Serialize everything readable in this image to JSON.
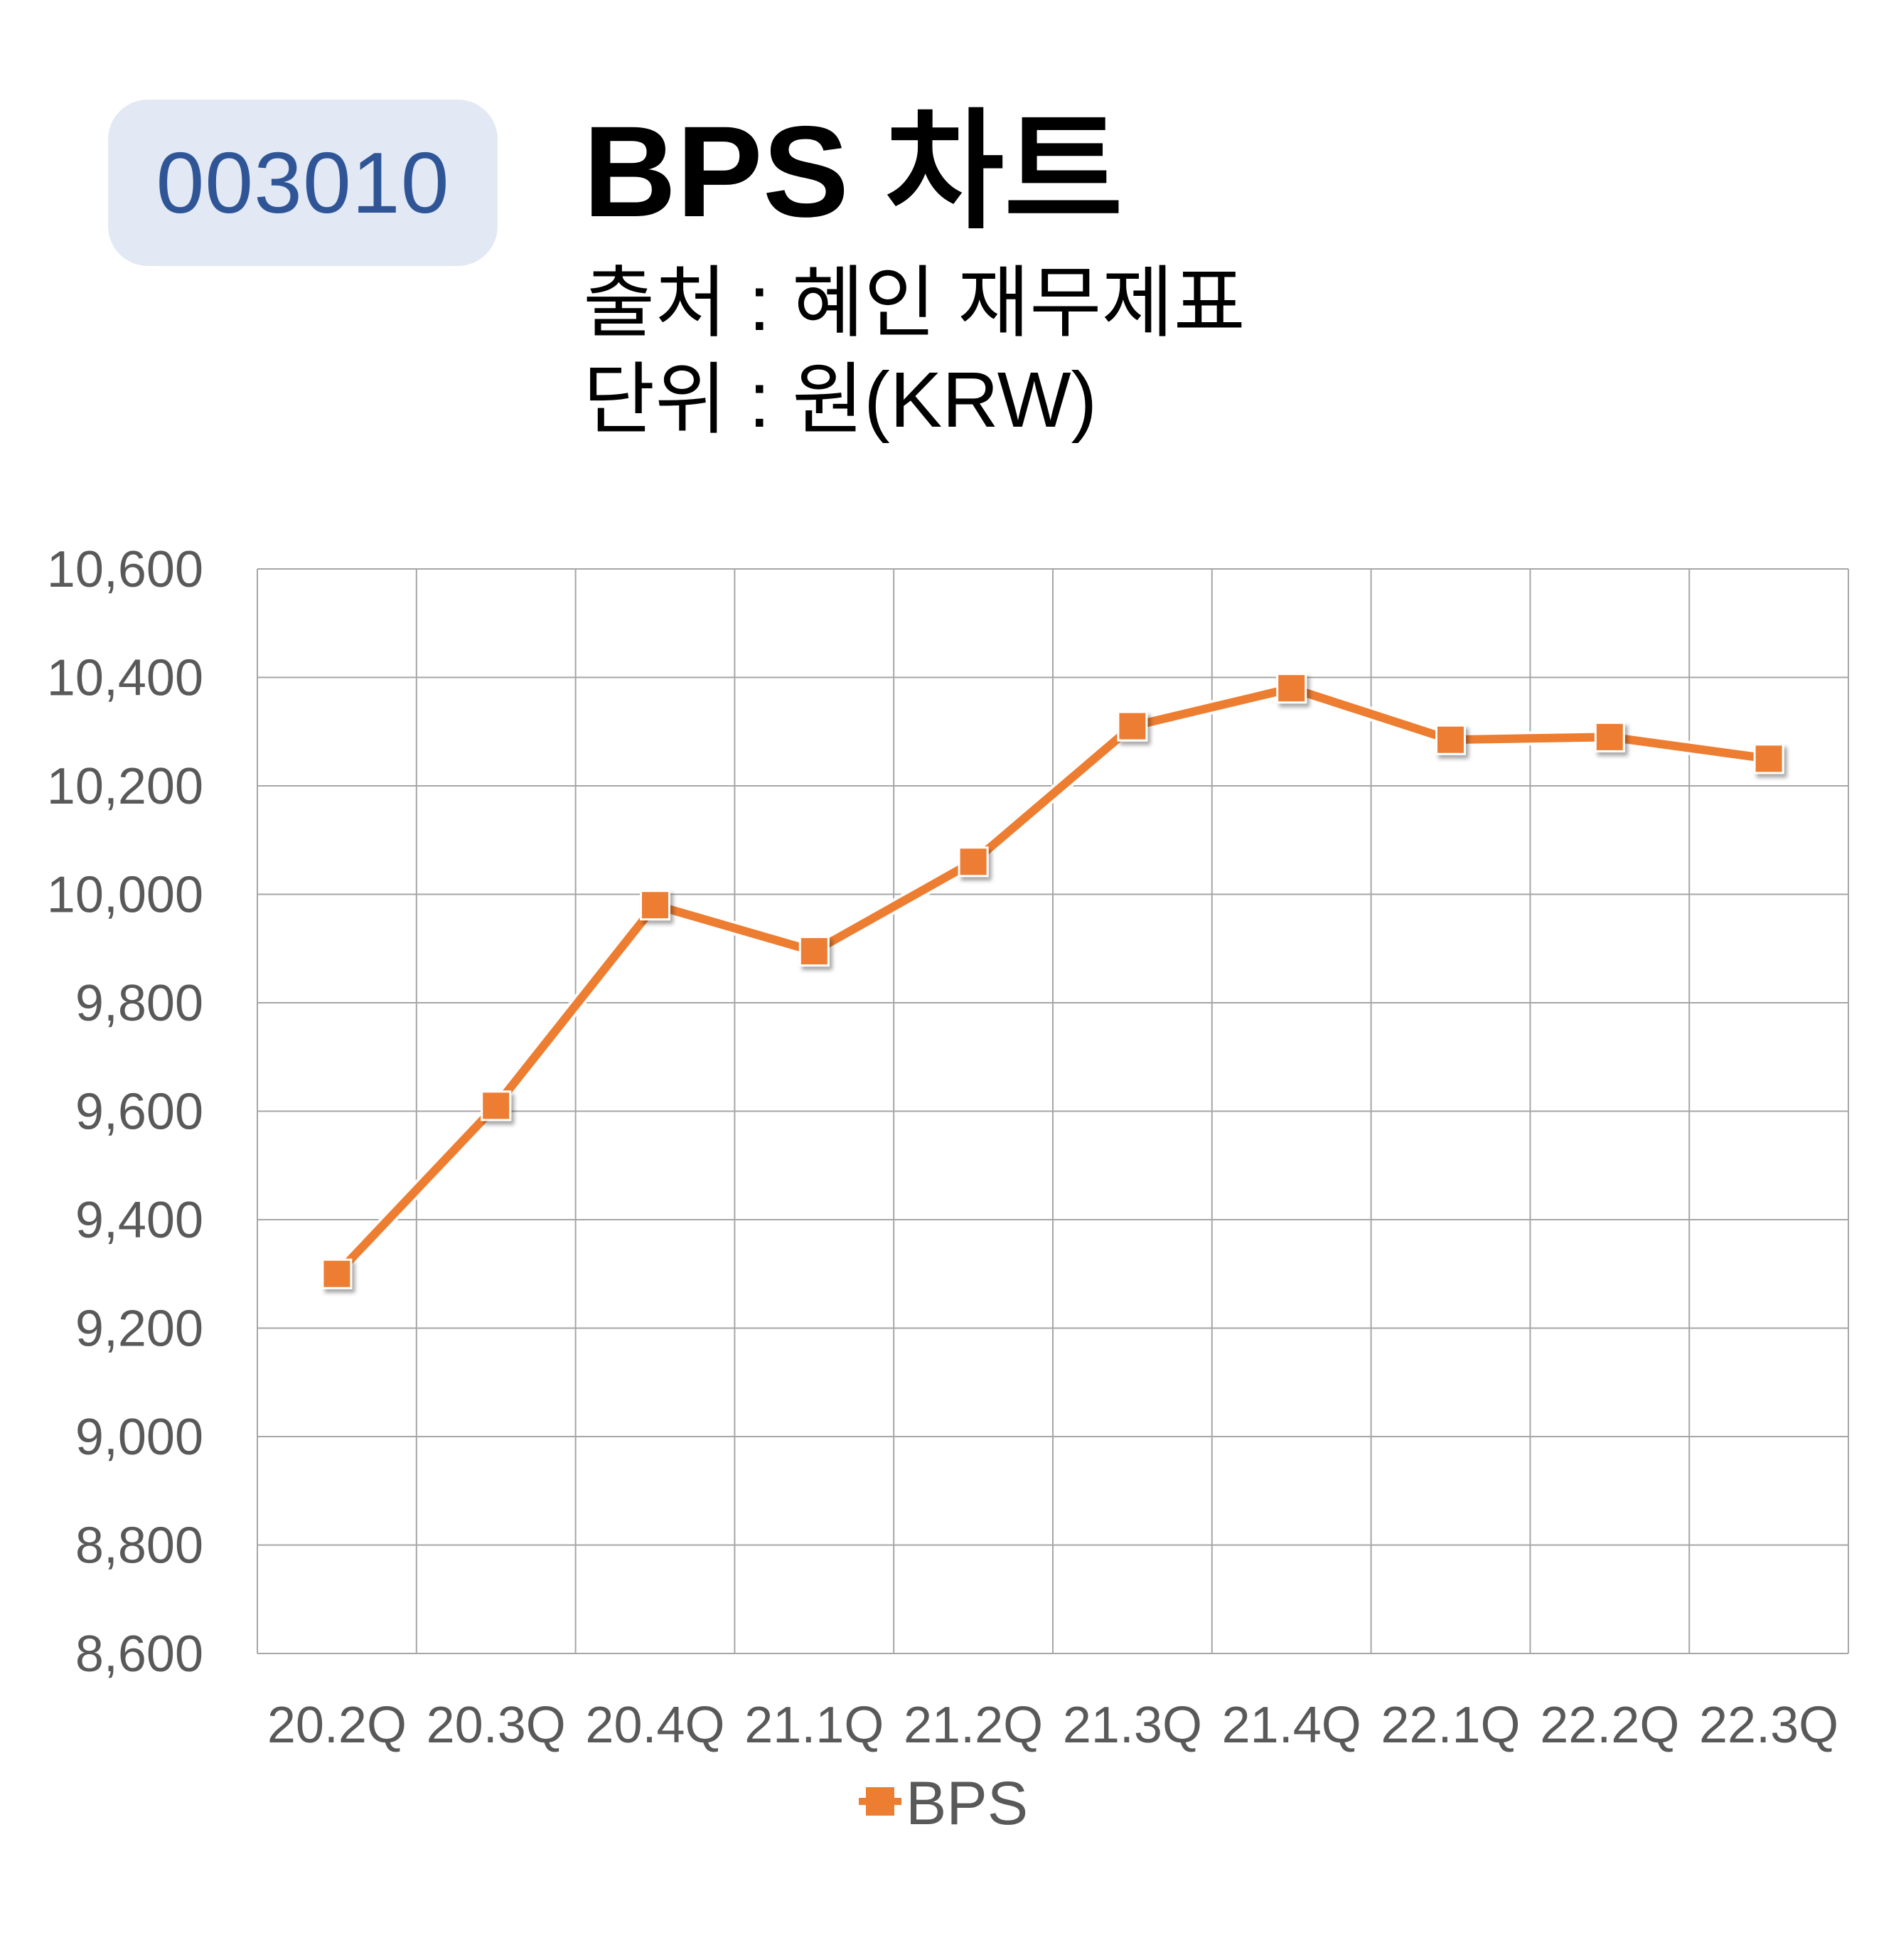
{
  "header": {
    "ticker": "003010",
    "title": "BPS 차트",
    "source": "출처 : 혜인 재무제표",
    "unit": "단위 : 원(KRW)"
  },
  "colors": {
    "accent": "#ed7d31",
    "badge_bg": "#e2e8f4",
    "badge_text": "#2f5597",
    "grid": "#a6a6a6",
    "tick_text": "#595959"
  },
  "chart_data": {
    "type": "line",
    "categories": [
      "20.2Q",
      "20.3Q",
      "20.4Q",
      "21.1Q",
      "21.2Q",
      "21.3Q",
      "21.4Q",
      "22.1Q",
      "22.2Q",
      "22.3Q"
    ],
    "series": [
      {
        "name": "BPS",
        "values": [
          9300,
          9610,
          9980,
          9895,
          10060,
          10310,
          10380,
          10285,
          10290,
          10250
        ]
      }
    ],
    "ylim": [
      8600,
      10600
    ],
    "yticks": [
      "8,600",
      "8,800",
      "9,000",
      "9,200",
      "9,400",
      "9,600",
      "9,800",
      "10,000",
      "10,200",
      "10,400",
      "10,600"
    ],
    "grid": true,
    "legend_position": "bottom",
    "marker": "square"
  }
}
